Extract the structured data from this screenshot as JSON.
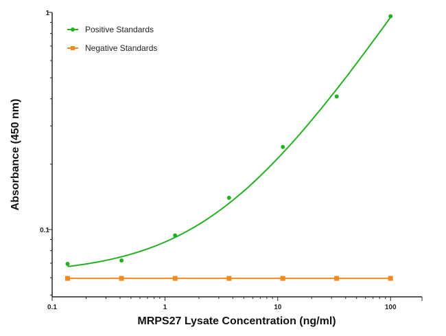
{
  "chart_data": {
    "type": "scatter",
    "title": "",
    "xlabel": "MRPS27 Lysate Concentration (ng/ml)",
    "ylabel": "Absorbance (450 nm)",
    "x_scale": "log",
    "y_scale": "log",
    "xlim": [
      0.1,
      190
    ],
    "ylim": [
      0.049,
      1
    ],
    "x_ticks": [
      {
        "value": 0.1,
        "label": "0.1"
      },
      {
        "value": 1,
        "label": "1"
      },
      {
        "value": 10,
        "label": "10"
      },
      {
        "value": 100,
        "label": "100"
      }
    ],
    "y_ticks": [
      {
        "value": 0.1,
        "label": "0.1"
      },
      {
        "value": 1,
        "label": "1"
      }
    ],
    "grid": false,
    "legend_position": "top-left",
    "series": [
      {
        "name": "Positive Standards",
        "color": "#22b020",
        "marker": "circle",
        "fit_curve": true,
        "x": [
          0.137,
          0.412,
          1.23,
          3.7,
          11.1,
          33.3,
          100
        ],
        "y": [
          0.0695,
          0.072,
          0.094,
          0.14,
          0.24,
          0.41,
          0.96
        ]
      },
      {
        "name": "Negative Standards",
        "color": "#f08a1e",
        "marker": "square",
        "fit_curve": false,
        "x": [
          0.137,
          0.412,
          1.23,
          3.7,
          11.1,
          33.3,
          100
        ],
        "y": [
          0.0596,
          0.0596,
          0.0596,
          0.0596,
          0.0596,
          0.0596,
          0.0596
        ]
      }
    ]
  }
}
